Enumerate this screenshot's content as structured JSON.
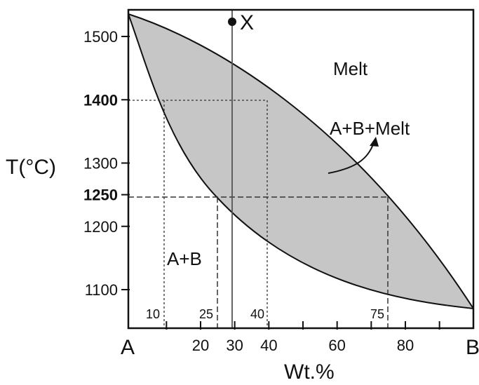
{
  "colors": {
    "two_phase_fill": "#c6c6c6",
    "line": "#111111",
    "guide": "#333333"
  },
  "axes": {
    "y_title": "T(°C)",
    "x_title": "Wt.%",
    "y_ticks": [
      {
        "value": 1500,
        "label": "1500",
        "bold": false
      },
      {
        "value": 1400,
        "label": "1400",
        "bold": true
      },
      {
        "value": 1300,
        "label": "1300",
        "bold": false
      },
      {
        "value": 1250,
        "label": "1250",
        "bold": true
      },
      {
        "value": 1200,
        "label": "1200",
        "bold": false
      },
      {
        "value": 1100,
        "label": "1100",
        "bold": false
      }
    ],
    "x_ticks": [
      {
        "value": 20,
        "label": "20"
      },
      {
        "value": 30,
        "label": "30"
      },
      {
        "value": 40,
        "label": "40"
      },
      {
        "value": 60,
        "label": "60"
      },
      {
        "value": 80,
        "label": "80"
      }
    ],
    "x_end_left": "A",
    "x_end_right": "B",
    "t_range": [
      1050,
      1550
    ]
  },
  "regions": {
    "melt": "Melt",
    "two_phase": "A+B+Melt",
    "solid": "A+B"
  },
  "point": {
    "label": "X",
    "composition": 30,
    "temperature": 1520
  },
  "guides": {
    "t1400": {
      "temperature": 1400,
      "solidus_comp": 10,
      "liquidus_comp": 40
    },
    "t1250": {
      "temperature": 1250,
      "solidus_comp": 25,
      "liquidus_comp": 75
    },
    "inner_labels": [
      {
        "comp": 10,
        "label": "10"
      },
      {
        "comp": 25,
        "label": "25"
      },
      {
        "comp": 40,
        "label": "40"
      },
      {
        "comp": 75,
        "label": "75"
      }
    ]
  }
}
